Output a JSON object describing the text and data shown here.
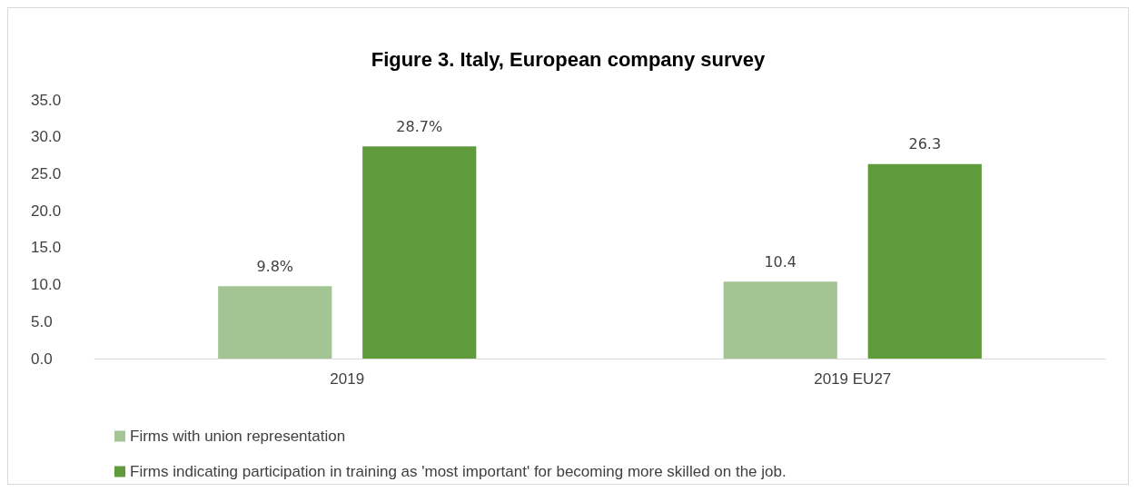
{
  "chart_data": {
    "type": "bar",
    "title": "Figure 3. Italy, European company survey",
    "categories": [
      "2019",
      "2019 EU27"
    ],
    "series": [
      {
        "name": "Firms with union representation",
        "color": "#a2c593",
        "values": [
          9.8,
          10.4
        ],
        "value_labels": [
          "9.8%",
          "10.4"
        ]
      },
      {
        "name": "Firms indicating participation in training as 'most important' for becoming more skilled on the job.",
        "color": "#5f9b3a",
        "values": [
          28.7,
          26.3
        ],
        "value_labels": [
          "28.7%",
          "26.3"
        ]
      }
    ],
    "ylim": [
      0,
      35
    ],
    "yticks": [
      {
        "value": 0,
        "label": "0.0"
      },
      {
        "value": 5,
        "label": "5.0"
      },
      {
        "value": 10,
        "label": "10.0"
      },
      {
        "value": 15,
        "label": "15.0"
      },
      {
        "value": 20,
        "label": "20.0"
      },
      {
        "value": 25,
        "label": "25.0"
      },
      {
        "value": 30,
        "label": "30.0"
      },
      {
        "value": 35,
        "label": "35.0"
      }
    ],
    "grid": false,
    "legend": "bottom left"
  }
}
